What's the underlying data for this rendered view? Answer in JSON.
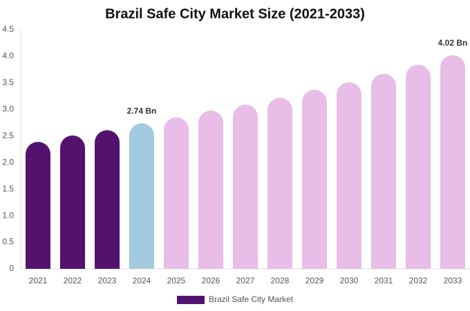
{
  "chart_data": {
    "type": "bar",
    "title": "Brazil Safe City Market Size (2021-2033)",
    "categories": [
      "2021",
      "2022",
      "2023",
      "2024",
      "2025",
      "2026",
      "2027",
      "2028",
      "2029",
      "2030",
      "2031",
      "2032",
      "2033"
    ],
    "series": [
      {
        "name": "Brazil Safe City Market",
        "color": "#54126f",
        "colors": [
          "#54126f",
          "#54126f",
          "#54126f",
          "#a3cbe0",
          "#e8bde8",
          "#e8bde8",
          "#e8bde8",
          "#e8bde8",
          "#e8bde8",
          "#e8bde8",
          "#e8bde8",
          "#e8bde8",
          "#e8bde8"
        ],
        "values": [
          2.39,
          2.51,
          2.61,
          2.74,
          2.85,
          2.98,
          3.09,
          3.22,
          3.37,
          3.51,
          3.67,
          3.84,
          4.02
        ],
        "value_labels": [
          null,
          null,
          null,
          "2.74 Bn",
          null,
          null,
          null,
          null,
          null,
          null,
          null,
          null,
          "4.02 Bn"
        ]
      }
    ],
    "ylim": [
      0,
      4.5
    ],
    "yticks": [
      0,
      0.5,
      {
        "value": 1,
        "label": "1.0"
      },
      1.5,
      {
        "value": 2,
        "label": "2.0"
      },
      2.5,
      {
        "value": 3,
        "label": "3.0"
      },
      3.5,
      {
        "value": 4,
        "label": "4.0"
      },
      4.5
    ],
    "grid": false,
    "legend": "bottom"
  }
}
